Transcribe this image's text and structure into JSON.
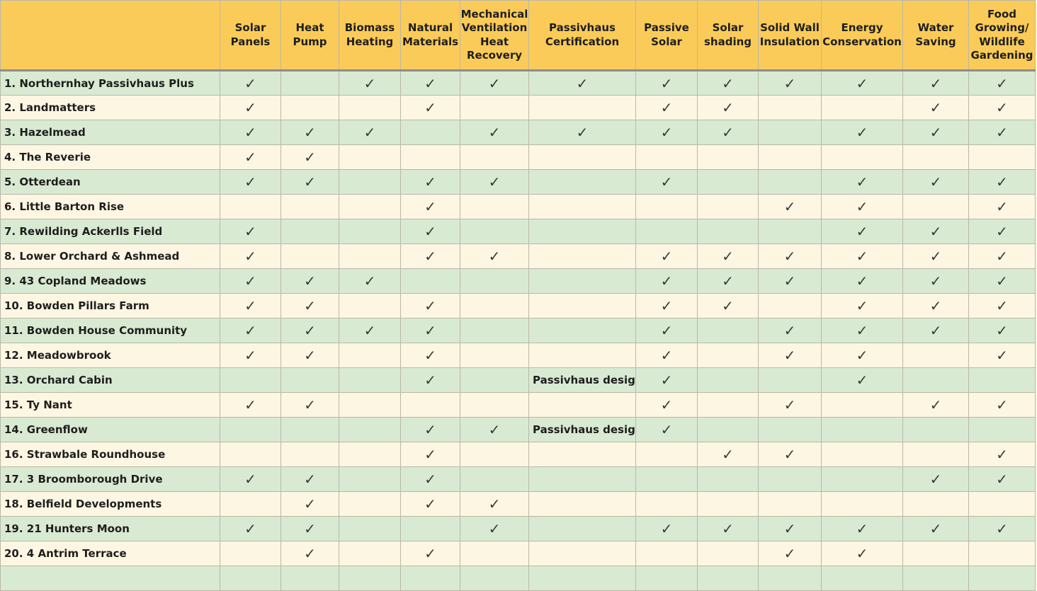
{
  "check_symbol": "✓",
  "columns": [
    {
      "key": "corner",
      "label": ""
    },
    {
      "key": "solar",
      "label": "Solar Panels"
    },
    {
      "key": "heat",
      "label": "Heat Pump"
    },
    {
      "key": "biomass",
      "label": "Biomass Heating"
    },
    {
      "key": "natural",
      "label": "Natural Materials"
    },
    {
      "key": "mvhr",
      "label": "Mechanical Ventilation Heat Recovery"
    },
    {
      "key": "passivhaus",
      "label": "Passivhaus Certification"
    },
    {
      "key": "passive_solar",
      "label": "Passive Solar"
    },
    {
      "key": "shading",
      "label": "Solar shading"
    },
    {
      "key": "swi",
      "label": "Solid Wall Insulation"
    },
    {
      "key": "energy",
      "label": "Energy Conservation"
    },
    {
      "key": "water",
      "label": "Water Saving"
    },
    {
      "key": "food",
      "label": "Food Growing/ Wildlife Gardening"
    }
  ],
  "rows": [
    {
      "name": "1. Northernhay Passivhaus Plus",
      "cells": [
        "✓",
        "",
        "✓",
        "✓",
        "✓",
        "✓",
        "✓",
        "✓",
        "✓",
        "✓",
        "✓",
        "✓"
      ]
    },
    {
      "name": "2. Landmatters",
      "cells": [
        "✓",
        "",
        "",
        "✓",
        "",
        "",
        "✓",
        "✓",
        "",
        "",
        "✓",
        "✓"
      ]
    },
    {
      "name": "3. Hazelmead",
      "cells": [
        "✓",
        "✓",
        "✓",
        "",
        "✓",
        "✓",
        "✓",
        "✓",
        "",
        "✓",
        "✓",
        "✓"
      ]
    },
    {
      "name": "4. The Reverie",
      "cells": [
        "✓",
        "✓",
        "",
        "",
        "",
        "",
        "",
        "",
        "",
        "",
        "",
        ""
      ]
    },
    {
      "name": "5. Otterdean",
      "cells": [
        "✓",
        "✓",
        "",
        "✓",
        "✓",
        "",
        "✓",
        "",
        "",
        "✓",
        "✓",
        "✓"
      ]
    },
    {
      "name": "6. Little Barton Rise",
      "cells": [
        "",
        "",
        "",
        "✓",
        "",
        "",
        "",
        "",
        "✓",
        "✓",
        "",
        "✓"
      ]
    },
    {
      "name": "7. Rewilding Ackerlls Field",
      "cells": [
        "✓",
        "",
        "",
        "✓",
        "",
        "",
        "",
        "",
        "",
        "✓",
        "✓",
        "✓"
      ]
    },
    {
      "name": "8. Lower Orchard & Ashmead",
      "cells": [
        "✓",
        "",
        "",
        "✓",
        "✓",
        "",
        "✓",
        "✓",
        "✓",
        "✓",
        "✓",
        "✓"
      ]
    },
    {
      "name": "9. 43 Copland Meadows",
      "cells": [
        "✓",
        "✓",
        "✓",
        "",
        "",
        "",
        "✓",
        "✓",
        "✓",
        "✓",
        "✓",
        "✓"
      ]
    },
    {
      "name": "10. Bowden Pillars Farm",
      "cells": [
        "✓",
        "✓",
        "",
        "✓",
        "",
        "",
        "✓",
        "✓",
        "",
        "✓",
        "✓",
        "✓"
      ]
    },
    {
      "name": "11. Bowden House Community",
      "cells": [
        "✓",
        "✓",
        "✓",
        "✓",
        "",
        "",
        "✓",
        "",
        "✓",
        "✓",
        "✓",
        "✓"
      ]
    },
    {
      "name": "12. Meadowbrook",
      "cells": [
        "✓",
        "✓",
        "",
        "✓",
        "",
        "",
        "✓",
        "",
        "✓",
        "✓",
        "",
        "✓"
      ]
    },
    {
      "name": "13. Orchard Cabin",
      "cells": [
        "",
        "",
        "",
        "✓",
        "",
        "Passivhaus design",
        "✓",
        "",
        "",
        "✓",
        "",
        ""
      ]
    },
    {
      "name": "15. Ty Nant",
      "cells": [
        "✓",
        "✓",
        "",
        "",
        "",
        "",
        "✓",
        "",
        "✓",
        "",
        "✓",
        "✓"
      ]
    },
    {
      "name": "14. Greenflow",
      "cells": [
        "",
        "",
        "",
        "✓",
        "✓",
        "Passivhaus design",
        "✓",
        "",
        "",
        "",
        "",
        ""
      ]
    },
    {
      "name": "16. Strawbale Roundhouse",
      "cells": [
        "",
        "",
        "",
        "✓",
        "",
        "",
        "",
        "✓",
        "✓",
        "",
        "",
        "✓"
      ]
    },
    {
      "name": "17. 3 Broomborough Drive",
      "cells": [
        "✓",
        "✓",
        "",
        "✓",
        "",
        "",
        "",
        "",
        "",
        "",
        "✓",
        "✓"
      ]
    },
    {
      "name": "18. Belfield Developments",
      "cells": [
        "",
        "✓",
        "",
        "✓",
        "✓",
        "",
        "",
        "",
        "",
        "",
        "",
        ""
      ]
    },
    {
      "name": "19. 21 Hunters Moon",
      "cells": [
        "✓",
        "✓",
        "",
        "",
        "✓",
        "",
        "✓",
        "✓",
        "✓",
        "✓",
        "✓",
        "✓"
      ]
    },
    {
      "name": "20. 4 Antrim Terrace",
      "cells": [
        "",
        "✓",
        "",
        "✓",
        "",
        "",
        "",
        "",
        "✓",
        "✓",
        "",
        ""
      ]
    },
    {
      "name": "",
      "cells": [
        "",
        "",
        "",
        "",
        "",
        "",
        "",
        "",
        "",
        "",
        "",
        ""
      ]
    }
  ]
}
